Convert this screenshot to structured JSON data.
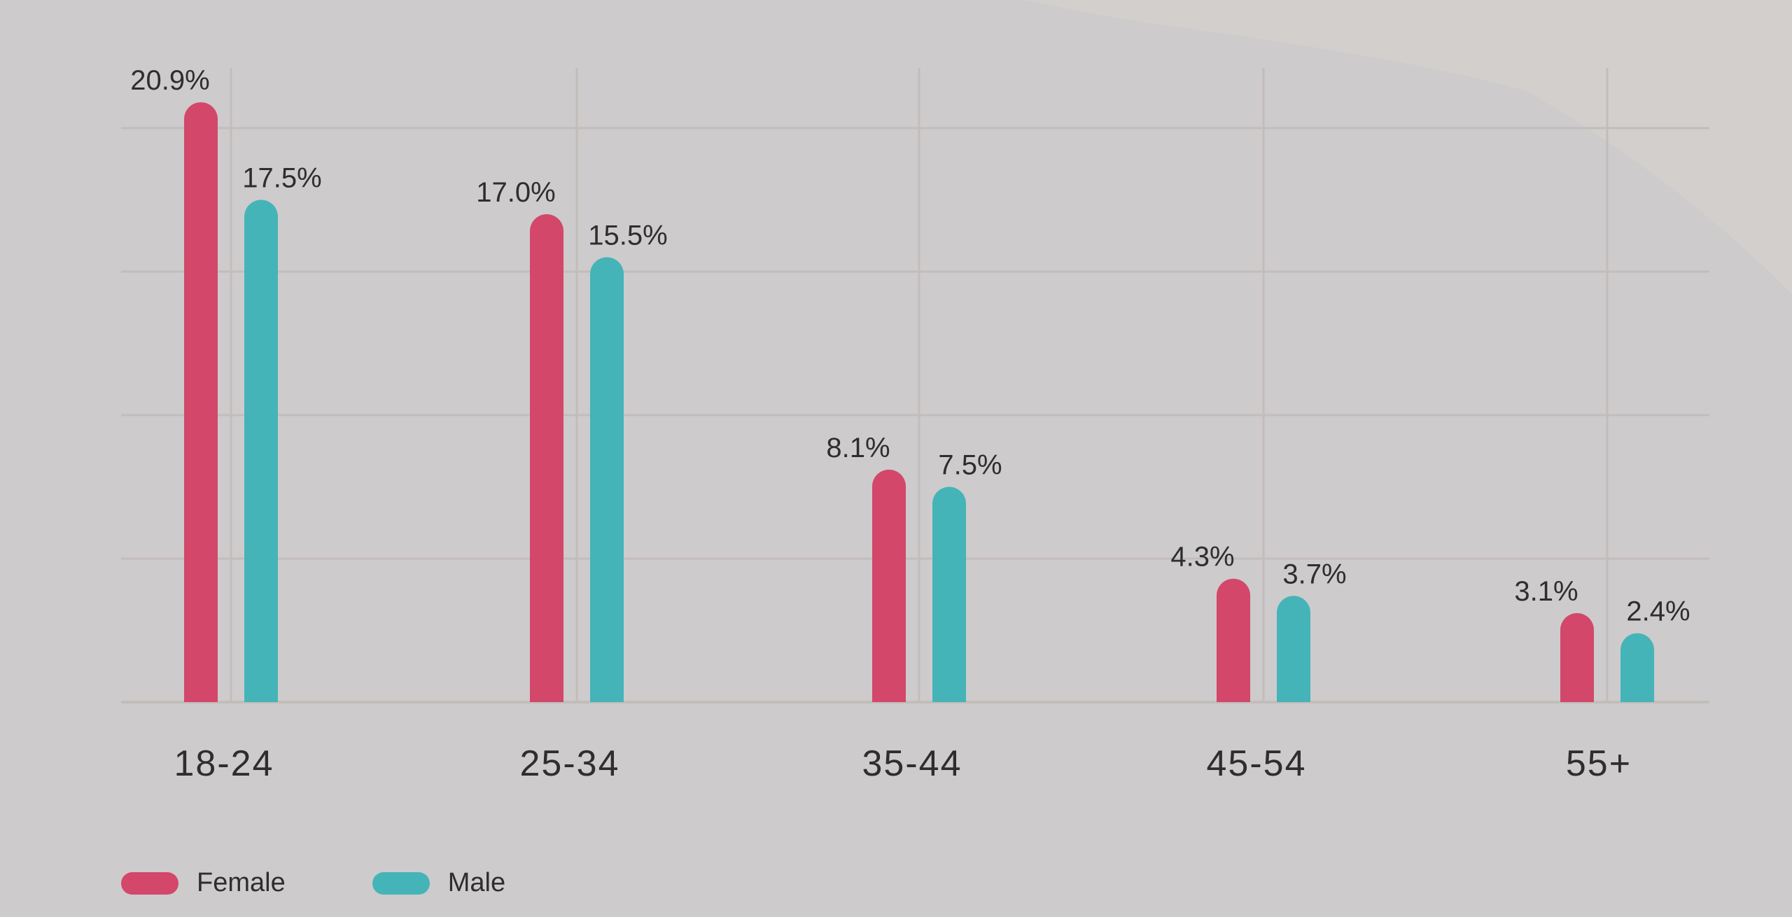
{
  "colors": {
    "background": "#cdcbcc",
    "female": "#d3476a",
    "male": "#44b4b8",
    "grid": "#c3bdba",
    "text": "#2e2e2e"
  },
  "chart_data": {
    "type": "bar",
    "categories": [
      "18-24",
      "25-34",
      "35-44",
      "45-54",
      "55+"
    ],
    "series": [
      {
        "name": "Female",
        "values": [
          20.9,
          17.0,
          8.1,
          4.3,
          3.1
        ],
        "labels": [
          "20.9%",
          "17.0%",
          "8.1%",
          "4.3%",
          "3.1%"
        ]
      },
      {
        "name": "Male",
        "values": [
          17.5,
          15.5,
          7.5,
          3.7,
          2.4
        ],
        "labels": [
          "17.5%",
          "15.5%",
          "7.5%",
          "3.7%",
          "2.4%"
        ]
      }
    ],
    "ylim": [
      0,
      22
    ],
    "grid": true,
    "legend_position": "bottom-left",
    "title": "",
    "xlabel": "",
    "ylabel": ""
  },
  "legend": {
    "female_label": "Female",
    "male_label": "Male"
  }
}
